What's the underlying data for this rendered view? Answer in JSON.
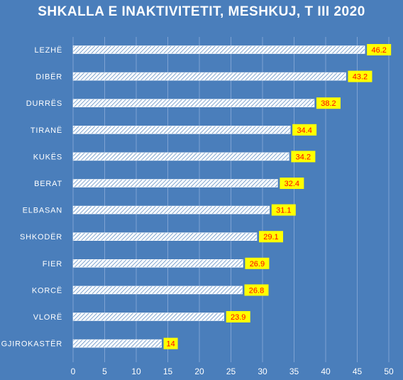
{
  "chart_data": {
    "type": "bar",
    "orientation": "horizontal",
    "title": "SHKALLA E INAKTIVITETIT,  MESHKUJ, T III 2020",
    "categories": [
      "LEZHË",
      "DIBËR",
      "DURRËS",
      "TIRANË",
      "KUKËS",
      "BERAT",
      "ELBASAN",
      "SHKODËR",
      "FIER",
      "KORCË",
      "VLORË",
      "GJIROKASTËR"
    ],
    "values": [
      46.2,
      43.2,
      38.2,
      34.4,
      34.2,
      32.4,
      31.1,
      29.1,
      26.9,
      26.8,
      23.9,
      14
    ],
    "value_labels": [
      "46.2",
      "43.2",
      "38.2",
      "34.4",
      "34.2",
      "32.4",
      "31.1",
      "29.1",
      "26.9",
      "26.8",
      "23.9",
      "14"
    ],
    "xlim": [
      0,
      50
    ],
    "x_ticks": [
      0,
      5,
      10,
      15,
      20,
      25,
      30,
      35,
      40,
      45,
      50
    ],
    "x_tick_labels": [
      "0",
      "5",
      "10",
      "15",
      "20",
      "25",
      "30",
      "35",
      "40",
      "45",
      "50"
    ],
    "grid": "vertical",
    "colors": {
      "background": "#4a7ebb",
      "gridline": "#7fa3d3",
      "bar_hatch": "#ffffff",
      "bar_stripe": "#4a7ebb",
      "label_bg": "#ffff00",
      "label_text": "#ff0000",
      "text": "#ffffff"
    }
  }
}
